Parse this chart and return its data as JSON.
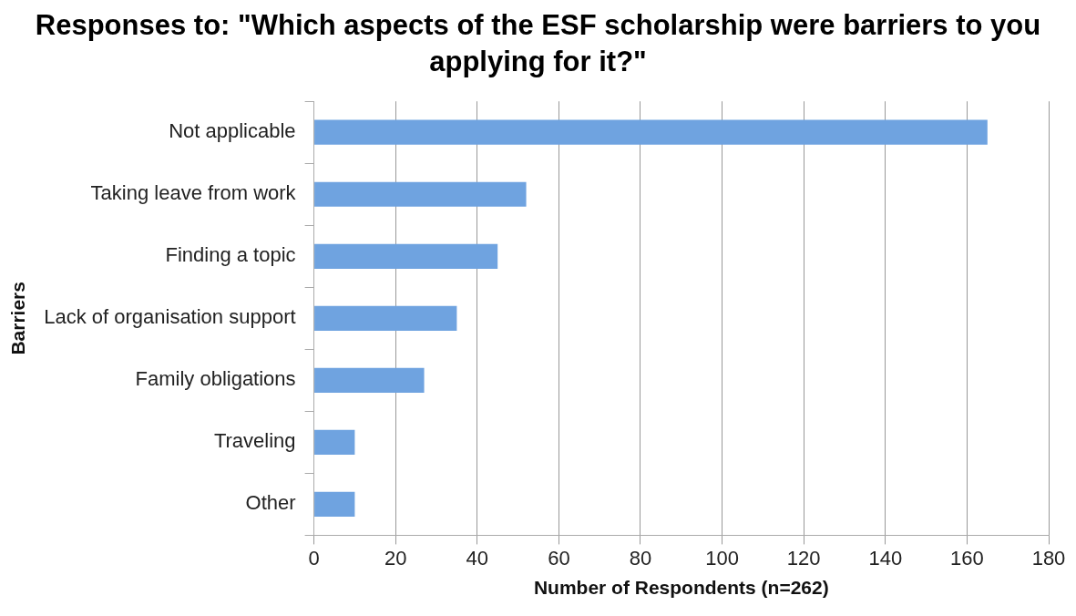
{
  "chart_data": {
    "type": "bar",
    "orientation": "horizontal",
    "title": "Responses to: \"Which aspects of the ESF scholarship were barriers to you applying for it?\"",
    "xlabel": "Number of Respondents (n=262)",
    "ylabel": "Barriers",
    "categories": [
      "Not applicable",
      "Taking leave from work",
      "Finding a topic",
      "Lack of organisation support",
      "Family obligations",
      "Traveling",
      "Other"
    ],
    "values": [
      165,
      52,
      45,
      35,
      27,
      10,
      10
    ],
    "color": "#6fa3e0",
    "xlim": [
      0,
      180
    ],
    "xticks": [
      0,
      20,
      40,
      60,
      80,
      100,
      120,
      140,
      160,
      180
    ],
    "grid": "x",
    "legend": false
  }
}
